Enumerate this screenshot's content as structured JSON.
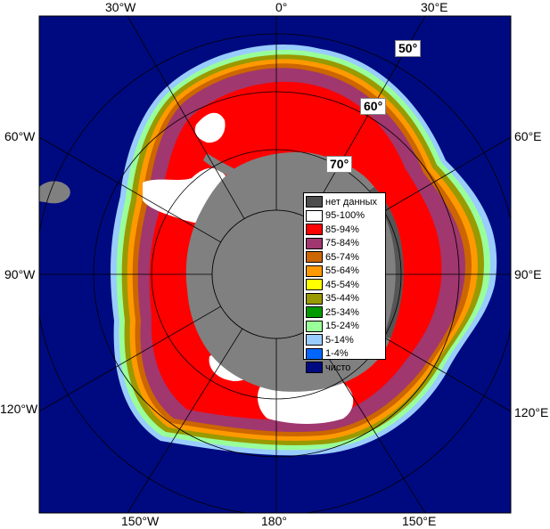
{
  "map": {
    "longitude_labels": {
      "top": [
        "30°W",
        "0°",
        "30°E"
      ],
      "left": [
        "60°W",
        "90°W",
        "120°W"
      ],
      "right": [
        "60°E",
        "90°E",
        "120°E"
      ],
      "bottom": [
        "150°W",
        "180°",
        "150°E"
      ]
    },
    "latitude_labels": [
      "50°",
      "60°",
      "70°"
    ],
    "colors": {
      "ocean": "#000a80",
      "land": "#808080",
      "no_data": "#505050"
    }
  },
  "legend": {
    "items": [
      {
        "label": "нет данных",
        "color": "#4d4d4d"
      },
      {
        "label": "95-100%",
        "color": "#ffffff"
      },
      {
        "label": "85-94%",
        "color": "#ff0000"
      },
      {
        "label": "75-84%",
        "color": "#a0376e"
      },
      {
        "label": "65-74%",
        "color": "#cc6600"
      },
      {
        "label": "55-64%",
        "color": "#ff9900"
      },
      {
        "label": "45-54%",
        "color": "#ffff00"
      },
      {
        "label": "35-44%",
        "color": "#999900"
      },
      {
        "label": "25-34%",
        "color": "#009900"
      },
      {
        "label": "15-24%",
        "color": "#99ff99"
      },
      {
        "label": "5-14%",
        "color": "#99ccff"
      },
      {
        "label": "1-4%",
        "color": "#0066ff"
      },
      {
        "label": "чисто",
        "color": "#000a80"
      }
    ]
  }
}
